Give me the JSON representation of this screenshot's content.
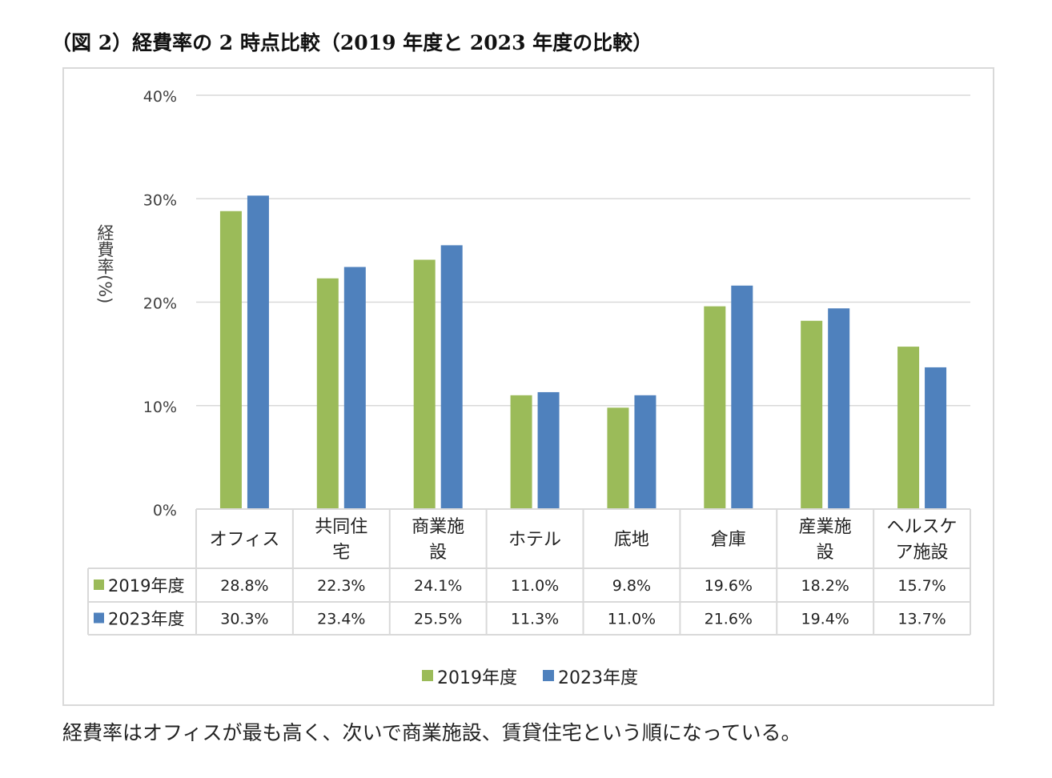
{
  "figure_title": "（図 2）経費率の 2 時点比較（2019 年度と 2023 年度の比較）",
  "caption": "経費率はオフィスが最も高く、次いで商業施設、賃貸住宅という順になっている。",
  "colors": {
    "series_2019": "#9bbb59",
    "series_2023": "#4f81bd",
    "grid": "#d9d9d9",
    "text": "#404040"
  },
  "chart_data": {
    "type": "bar",
    "ylabel": "経費率(%)",
    "ylim": [
      0,
      40
    ],
    "yticks": [
      0,
      10,
      20,
      30,
      40
    ],
    "ytick_labels": [
      "0%",
      "10%",
      "20%",
      "30%",
      "40%"
    ],
    "grid": true,
    "legend_position": "bottom",
    "data_table": true,
    "categories": [
      [
        "オフィス"
      ],
      [
        "共同住",
        "宅"
      ],
      [
        "商業施",
        "設"
      ],
      [
        "ホテル"
      ],
      [
        "底地"
      ],
      [
        "倉庫"
      ],
      [
        "産業施",
        "設"
      ],
      [
        "ヘルスケ",
        "ア施設"
      ]
    ],
    "series": [
      {
        "name": "2019年度",
        "values": [
          28.8,
          22.3,
          24.1,
          11.0,
          9.8,
          19.6,
          18.2,
          15.7
        ],
        "labels": [
          "28.8%",
          "22.3%",
          "24.1%",
          "11.0%",
          "9.8%",
          "19.6%",
          "18.2%",
          "15.7%"
        ]
      },
      {
        "name": "2023年度",
        "values": [
          30.3,
          23.4,
          25.5,
          11.3,
          11.0,
          21.6,
          19.4,
          13.7
        ],
        "labels": [
          "30.3%",
          "23.4%",
          "25.5%",
          "11.3%",
          "11.0%",
          "21.6%",
          "19.4%",
          "13.7%"
        ]
      }
    ]
  }
}
